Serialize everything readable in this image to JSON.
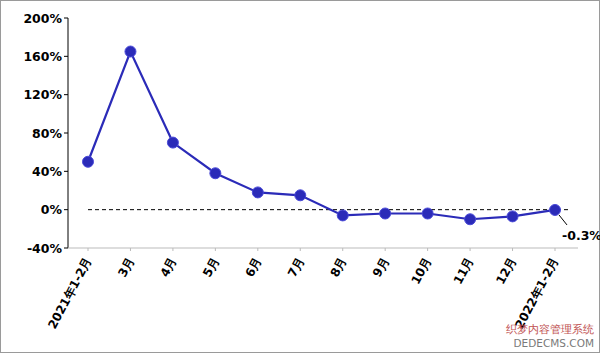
{
  "chart_data": {
    "type": "line",
    "categories": [
      "2021年1-2月",
      "3月",
      "4月",
      "5月",
      "6月",
      "7月",
      "8月",
      "9月",
      "10月",
      "11月",
      "12月",
      "2022年1-2月"
    ],
    "values": [
      50,
      165,
      70,
      38,
      18,
      15,
      -6,
      -4,
      -4,
      -10,
      -7,
      -0.3
    ],
    "value_labels": [
      null,
      null,
      null,
      null,
      null,
      null,
      null,
      null,
      null,
      null,
      null,
      "-0.3%"
    ],
    "color": "#2b2bb8",
    "marker": "circle",
    "ylim": [
      -40,
      200
    ],
    "yticks": [
      {
        "value": -40,
        "label": "-40%"
      },
      {
        "value": 0,
        "label": "0%"
      },
      {
        "value": 40,
        "label": "40%"
      },
      {
        "value": 80,
        "label": "80%"
      },
      {
        "value": 120,
        "label": "120%"
      },
      {
        "value": 160,
        "label": "160%"
      },
      {
        "value": 200,
        "label": "200%"
      }
    ],
    "annotations": [
      "织梦内容管理系统",
      "DEDECMS.COM"
    ]
  }
}
